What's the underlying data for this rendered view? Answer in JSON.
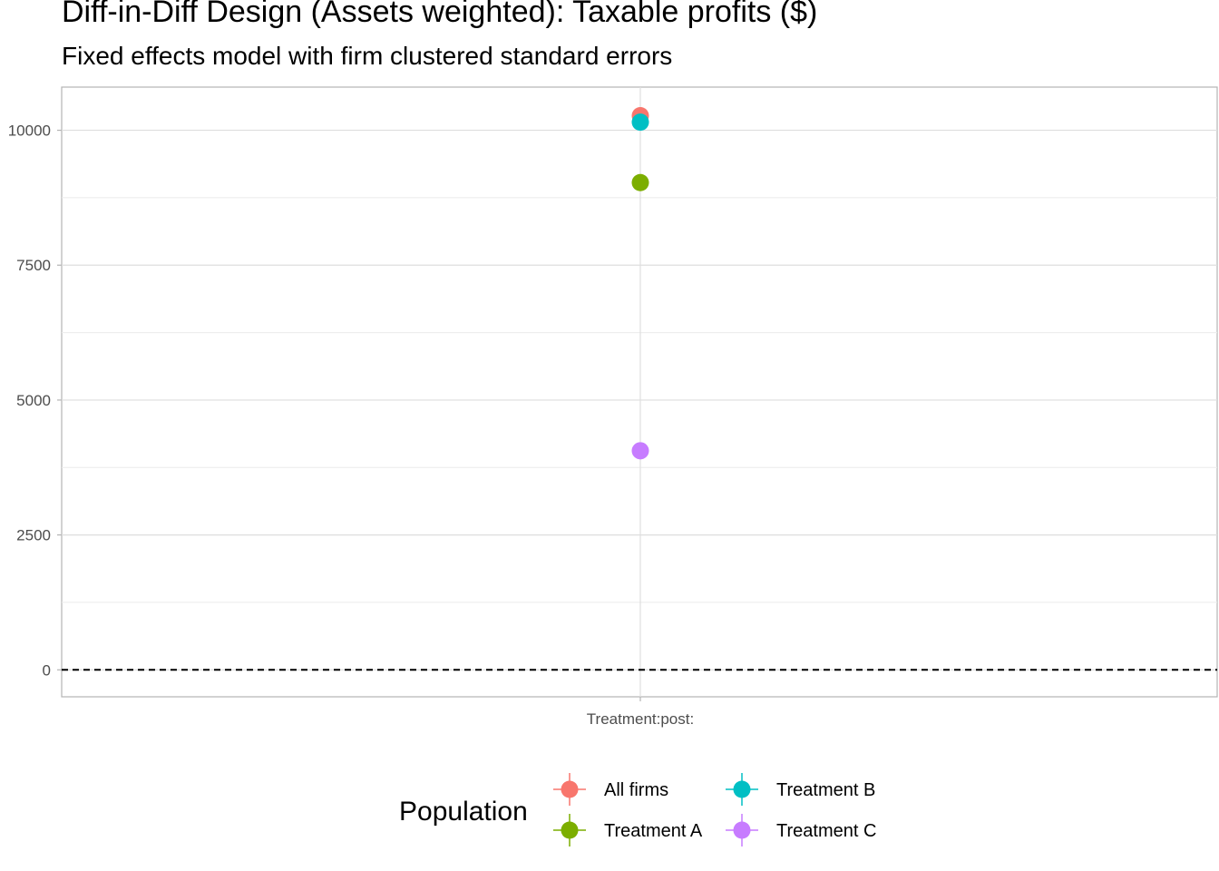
{
  "chart_data": {
    "type": "scatter",
    "title": "Diff-in-Diff Design (Assets weighted): Taxable profits  ($)",
    "subtitle": "Fixed effects model with firm clustered standard errors",
    "xlabel": "",
    "ylabel": "",
    "categories": [
      "Treatment:post:"
    ],
    "ylim": [
      -500,
      10800
    ],
    "y_ticks": [
      0,
      2500,
      5000,
      7500,
      10000
    ],
    "y_tick_labels": [
      "0",
      "2500",
      "5000",
      "7500",
      "10000"
    ],
    "grid": true,
    "reference_line": 0,
    "legend": {
      "title": "Population",
      "placement": "bottom"
    },
    "series": [
      {
        "name": "All firms",
        "color": "#F8766D",
        "values": [
          10270
        ]
      },
      {
        "name": "Treatment A",
        "color": "#7CAE00",
        "values": [
          9030
        ]
      },
      {
        "name": "Treatment B",
        "color": "#00BFC4",
        "values": [
          10150
        ]
      },
      {
        "name": "Treatment C",
        "color": "#C77CFF",
        "values": [
          4060
        ]
      }
    ]
  }
}
